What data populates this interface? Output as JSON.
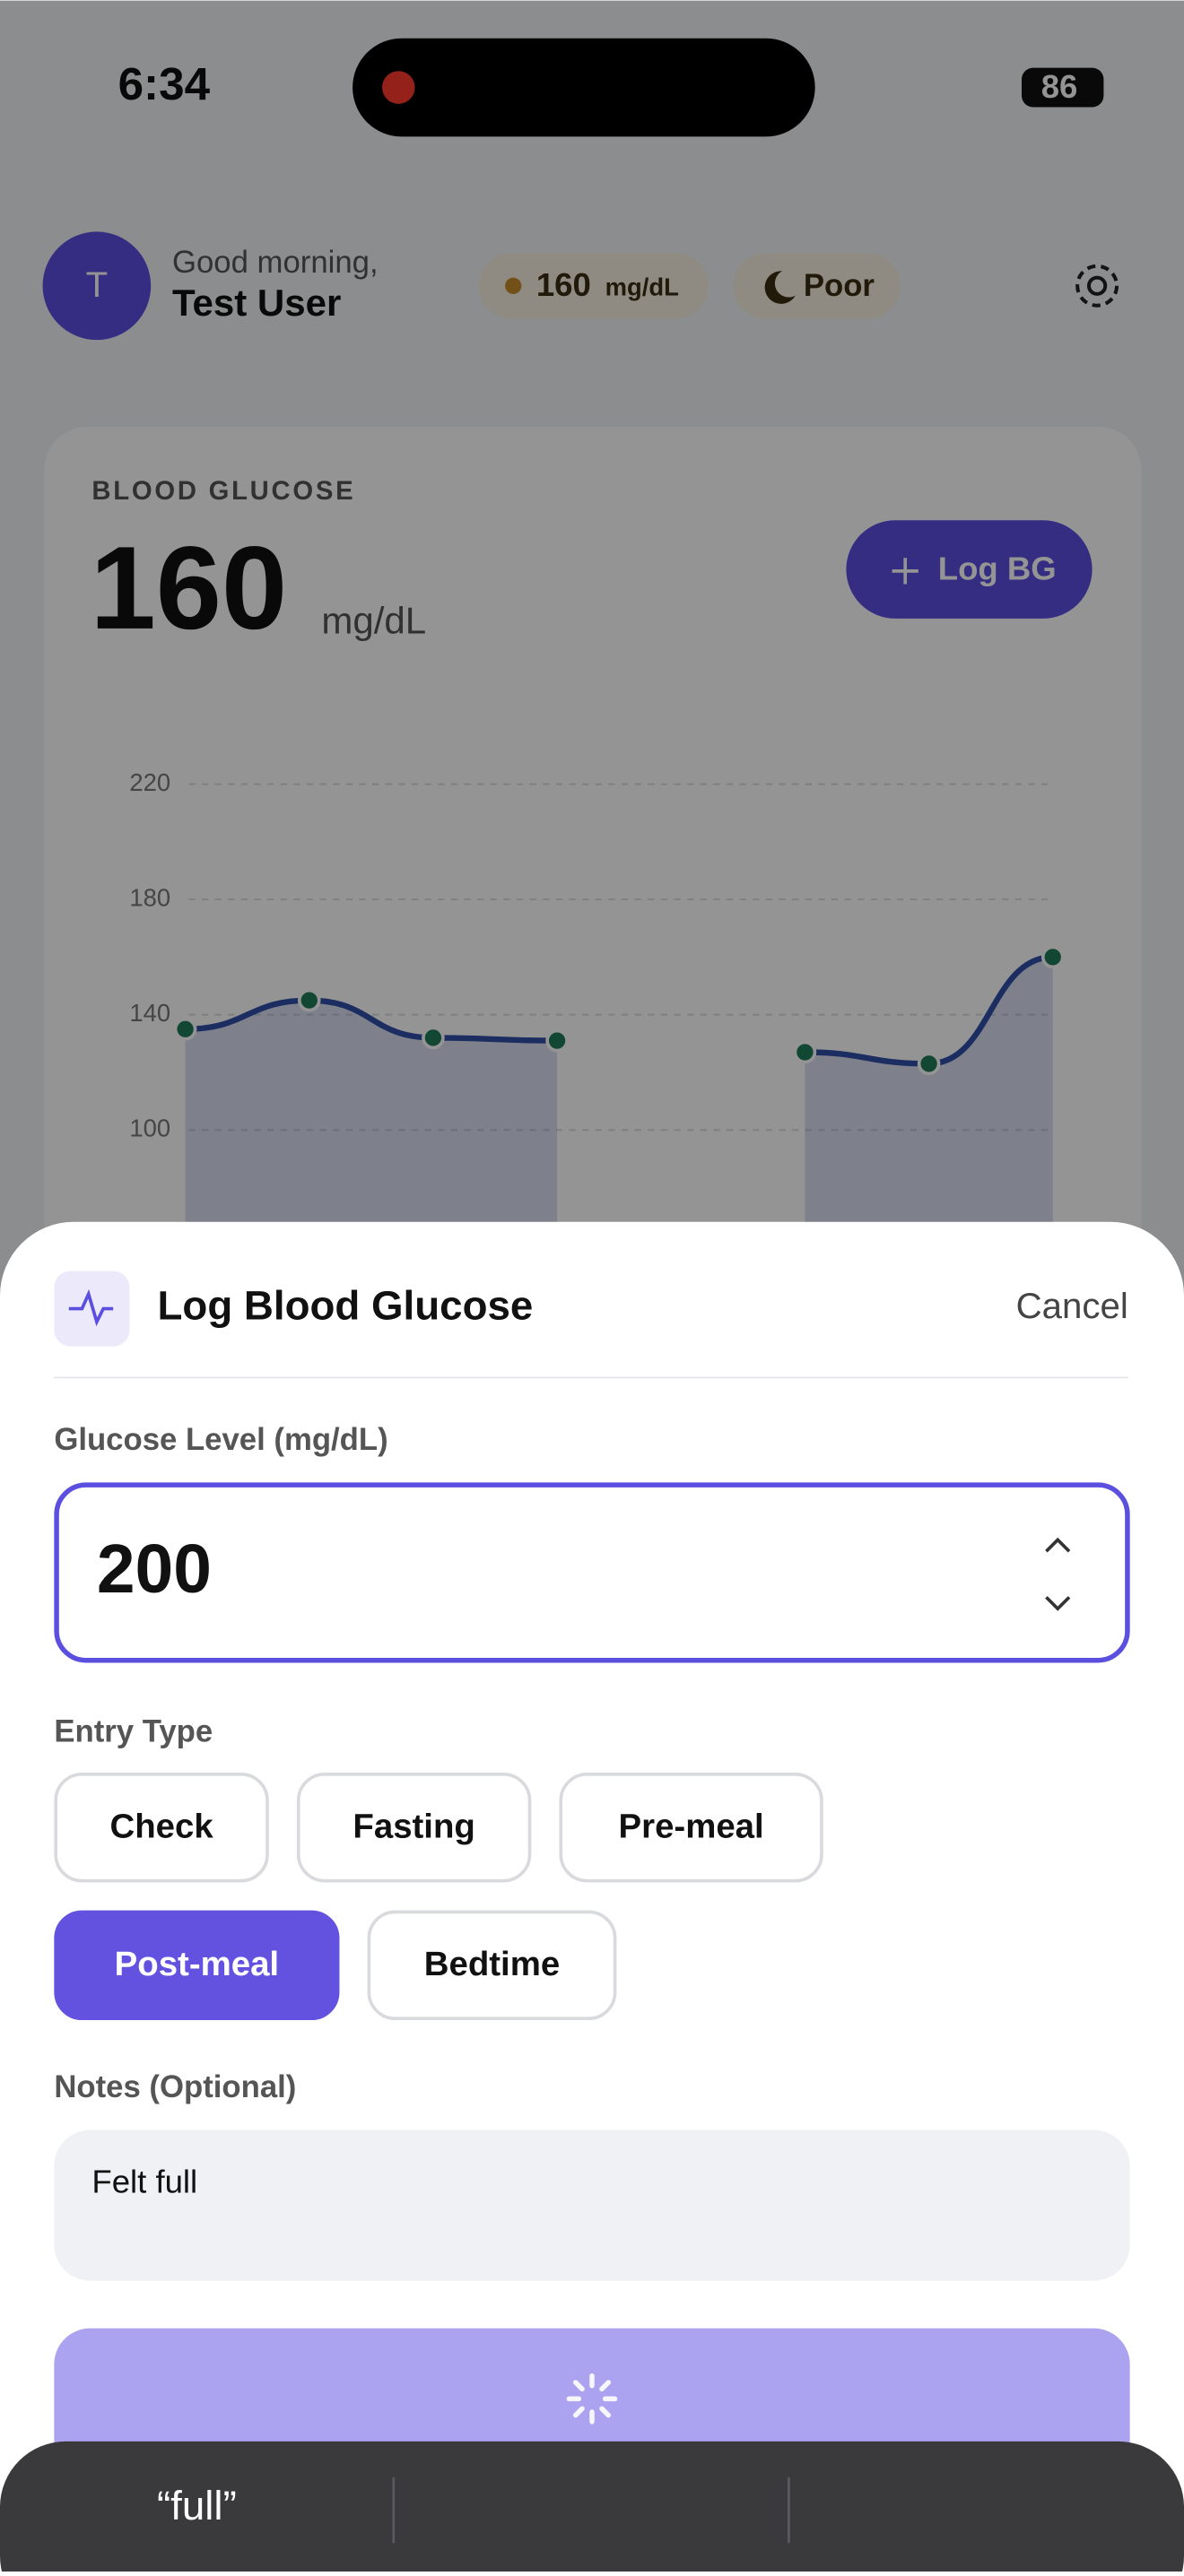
{
  "status_bar": {
    "time": "6:34",
    "battery": "86"
  },
  "header": {
    "avatar": "T",
    "greeting": "Good morning,",
    "name": "Test User",
    "glucose_value": "160",
    "glucose_unit": "mg/dL",
    "sleep": "Poor"
  },
  "card": {
    "label": "BLOOD GLUCOSE",
    "value": "160",
    "unit": "mg/dL",
    "button": "Log BG"
  },
  "chart_data": {
    "type": "line",
    "categories": [
      null,
      null,
      null,
      null,
      null,
      null,
      null,
      null
    ],
    "values": [
      135,
      145,
      132,
      131,
      null,
      127,
      123,
      160
    ],
    "color": "#2f4fa8",
    "point_color": "#1f7a5a",
    "ylim": [
      40,
      230
    ],
    "yticks": [
      100,
      140,
      180,
      220
    ],
    "grid": true
  },
  "sheet": {
    "title": "Log Blood Glucose",
    "cancel": "Cancel",
    "glucose_label": "Glucose Level (mg/dL)",
    "glucose_value": "200",
    "entry_label": "Entry Type",
    "entry_types": [
      {
        "label": "Check",
        "selected": false
      },
      {
        "label": "Fasting",
        "selected": false
      },
      {
        "label": "Pre-meal",
        "selected": false
      },
      {
        "label": "Post-meal",
        "selected": true
      },
      {
        "label": "Bedtime",
        "selected": false
      }
    ],
    "notes_label": "Notes (Optional)",
    "notes_value": "Felt full"
  },
  "keyboard": {
    "suggestion": "“full”"
  }
}
